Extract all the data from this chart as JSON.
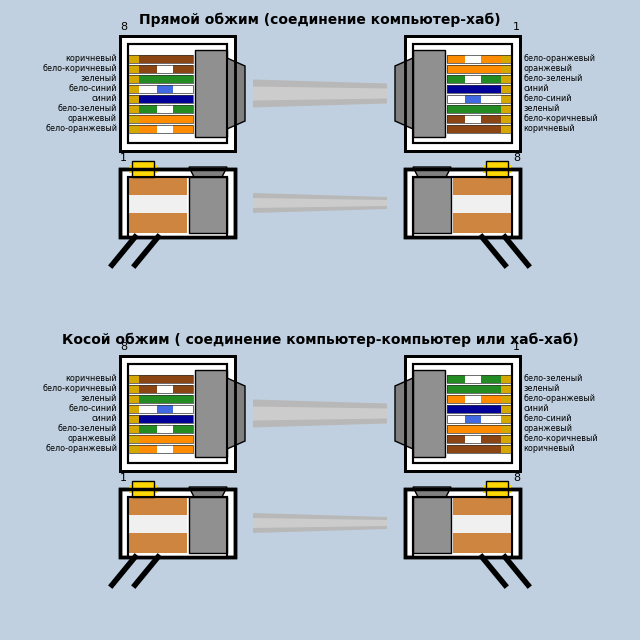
{
  "bg_color": "#c0d0e0",
  "title1": "Прямой обжим (соединение компьютер-хаб)",
  "title2": "Косой обжим ( соединение компьютер-компьютер или хаб-хаб)",
  "straight_left_labels": [
    "коричневый",
    "бело-коричневый",
    "зеленый",
    "бело-синий",
    "синий",
    "бело-зеленый",
    "оранжевый",
    "бело-оранжевый"
  ],
  "straight_right_labels": [
    "бело-оранжевый",
    "оранжевый",
    "бело-зеленый",
    "синий",
    "бело-синий",
    "зеленый",
    "бело-коричневый",
    "коричневый"
  ],
  "cross_left_labels": [
    "коричневый",
    "бело-коричневый",
    "зеленый",
    "бело-синий",
    "синий",
    "бело-зеленый",
    "оранжевый",
    "бело-оранжевый"
  ],
  "cross_right_labels": [
    "бело-зеленый",
    "зеленый",
    "бело-оранжевый",
    "синий",
    "бело-синий",
    "оранжевый",
    "бело-коричневый",
    "коричневый"
  ],
  "wires_straight_left": [
    [
      "#d4a800",
      "#8B4513"
    ],
    [
      "#d4a800",
      "#8B4513",
      "#ffffff"
    ],
    [
      "#d4a800",
      "#228B22"
    ],
    [
      "#d4a800",
      "#ffffff",
      "#4169E1"
    ],
    [
      "#d4a800",
      "#000099"
    ],
    [
      "#d4a800",
      "#228B22",
      "#ffffff"
    ],
    [
      "#d4a800",
      "#FF8C00"
    ],
    [
      "#d4a800",
      "#FF8C00",
      "#ffffff"
    ]
  ],
  "wires_straight_right": [
    [
      "#d4a800",
      "#FF8C00",
      "#ffffff"
    ],
    [
      "#d4a800",
      "#FF8C00"
    ],
    [
      "#d4a800",
      "#228B22",
      "#ffffff"
    ],
    [
      "#d4a800",
      "#000099"
    ],
    [
      "#d4a800",
      "#ffffff",
      "#4169E1"
    ],
    [
      "#d4a800",
      "#228B22"
    ],
    [
      "#d4a800",
      "#8B4513",
      "#ffffff"
    ],
    [
      "#d4a800",
      "#8B4513"
    ]
  ],
  "wires_cross_left": [
    [
      "#d4a800",
      "#8B4513"
    ],
    [
      "#d4a800",
      "#8B4513",
      "#ffffff"
    ],
    [
      "#d4a800",
      "#228B22"
    ],
    [
      "#d4a800",
      "#ffffff",
      "#4169E1"
    ],
    [
      "#d4a800",
      "#000099"
    ],
    [
      "#d4a800",
      "#228B22",
      "#ffffff"
    ],
    [
      "#d4a800",
      "#FF8C00"
    ],
    [
      "#d4a800",
      "#FF8C00",
      "#ffffff"
    ]
  ],
  "wires_cross_right": [
    [
      "#d4a800",
      "#228B22",
      "#ffffff"
    ],
    [
      "#d4a800",
      "#228B22"
    ],
    [
      "#d4a800",
      "#FF8C00",
      "#ffffff"
    ],
    [
      "#d4a800",
      "#000099"
    ],
    [
      "#d4a800",
      "#ffffff",
      "#4169E1"
    ],
    [
      "#d4a800",
      "#FF8C00"
    ],
    [
      "#d4a800",
      "#8B4513",
      "#ffffff"
    ],
    [
      "#d4a800",
      "#8B4513"
    ]
  ],
  "connector_outer_color": "#ffffff",
  "connector_border": "#000000",
  "gray_plug_color": "#909090",
  "cable_color": "#aaaaaa",
  "tab_color": "#FFD700",
  "brown_cable": "#CD853F"
}
